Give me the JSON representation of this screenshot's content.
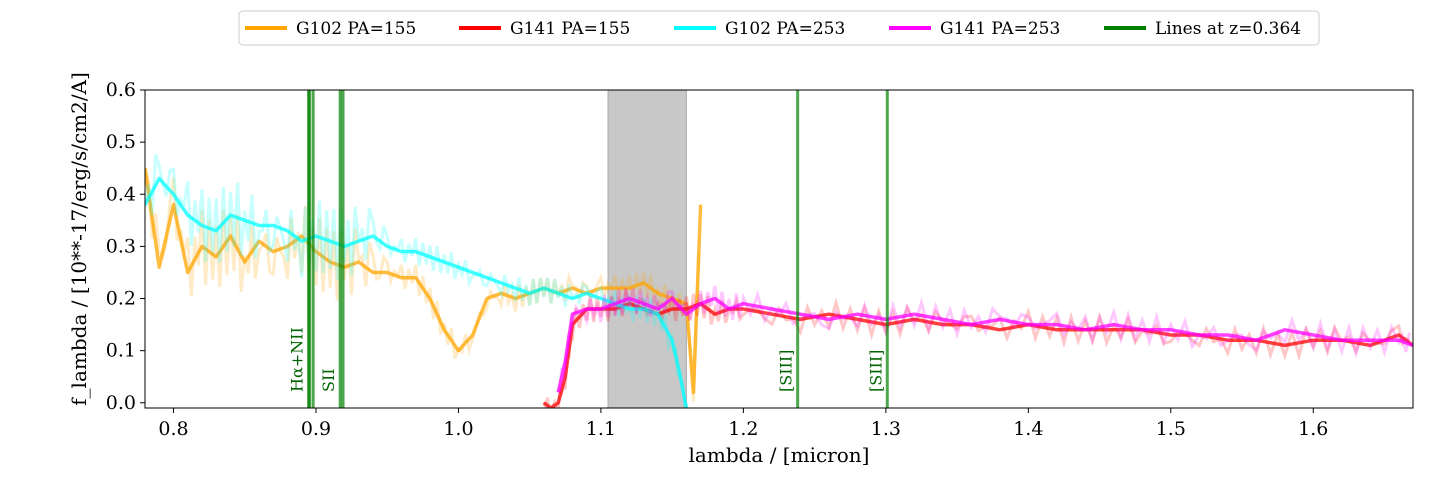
{
  "chart_data": {
    "type": "line",
    "title": "",
    "xlabel": "lambda / [micron]",
    "ylabel": "f_lambda / [10**-17/erg/s/cm2/A]",
    "xlim": [
      0.78,
      1.67
    ],
    "ylim": [
      -0.01,
      0.6
    ],
    "xticks": [
      0.8,
      0.9,
      1.0,
      1.1,
      1.2,
      1.3,
      1.4,
      1.5,
      1.6
    ],
    "xtick_labels": [
      "0.8",
      "0.9",
      "1.0",
      "1.1",
      "1.2",
      "1.3",
      "1.4",
      "1.5",
      "1.6"
    ],
    "yticks": [
      0.0,
      0.1,
      0.2,
      0.3,
      0.4,
      0.5,
      0.6
    ],
    "ytick_labels": [
      "0.0",
      "0.1",
      "0.2",
      "0.3",
      "0.4",
      "0.5",
      "0.6"
    ],
    "grid": false,
    "legend_position": "top-center, above plot",
    "shaded_region": {
      "x0": 1.105,
      "x1": 1.16,
      "color": "#c8c8c8"
    },
    "series": [
      {
        "name": "G102 PA=155",
        "color": "#ffa500",
        "x": [
          0.78,
          0.79,
          0.8,
          0.81,
          0.82,
          0.83,
          0.84,
          0.85,
          0.86,
          0.87,
          0.88,
          0.89,
          0.9,
          0.91,
          0.92,
          0.93,
          0.94,
          0.95,
          0.96,
          0.97,
          0.98,
          0.99,
          1.0,
          1.01,
          1.02,
          1.03,
          1.04,
          1.05,
          1.06,
          1.07,
          1.08,
          1.09,
          1.1,
          1.11,
          1.12,
          1.13,
          1.14,
          1.15,
          1.16,
          1.165,
          1.17
        ],
        "y": [
          0.45,
          0.26,
          0.38,
          0.25,
          0.3,
          0.28,
          0.32,
          0.27,
          0.31,
          0.29,
          0.3,
          0.32,
          0.29,
          0.27,
          0.26,
          0.27,
          0.25,
          0.25,
          0.24,
          0.24,
          0.2,
          0.14,
          0.1,
          0.13,
          0.2,
          0.21,
          0.2,
          0.21,
          0.22,
          0.21,
          0.22,
          0.21,
          0.22,
          0.22,
          0.22,
          0.23,
          0.21,
          0.2,
          0.19,
          0.02,
          0.38
        ]
      },
      {
        "name": "G141 PA=155",
        "color": "#ff0000",
        "x": [
          1.06,
          1.065,
          1.07,
          1.075,
          1.08,
          1.09,
          1.1,
          1.11,
          1.12,
          1.13,
          1.14,
          1.15,
          1.16,
          1.17,
          1.18,
          1.19,
          1.2,
          1.22,
          1.24,
          1.26,
          1.28,
          1.3,
          1.32,
          1.34,
          1.36,
          1.38,
          1.4,
          1.42,
          1.44,
          1.46,
          1.48,
          1.5,
          1.52,
          1.54,
          1.56,
          1.58,
          1.6,
          1.62,
          1.64,
          1.66,
          1.67
        ],
        "y": [
          0.0,
          -0.01,
          0.0,
          0.05,
          0.15,
          0.18,
          0.18,
          0.18,
          0.19,
          0.18,
          0.17,
          0.18,
          0.18,
          0.19,
          0.17,
          0.18,
          0.18,
          0.17,
          0.16,
          0.17,
          0.16,
          0.15,
          0.16,
          0.15,
          0.15,
          0.14,
          0.15,
          0.14,
          0.14,
          0.14,
          0.14,
          0.13,
          0.13,
          0.12,
          0.12,
          0.11,
          0.12,
          0.12,
          0.11,
          0.13,
          0.11
        ]
      },
      {
        "name": "G102 PA=253",
        "color": "#00ffff",
        "x": [
          0.78,
          0.79,
          0.8,
          0.81,
          0.82,
          0.83,
          0.84,
          0.85,
          0.86,
          0.87,
          0.88,
          0.89,
          0.9,
          0.91,
          0.92,
          0.93,
          0.94,
          0.95,
          0.96,
          0.97,
          0.98,
          0.99,
          1.0,
          1.01,
          1.02,
          1.03,
          1.04,
          1.05,
          1.06,
          1.07,
          1.08,
          1.09,
          1.1,
          1.11,
          1.12,
          1.13,
          1.14,
          1.15,
          1.155,
          1.16
        ],
        "y": [
          0.38,
          0.43,
          0.4,
          0.36,
          0.34,
          0.33,
          0.36,
          0.35,
          0.34,
          0.34,
          0.33,
          0.31,
          0.32,
          0.31,
          0.3,
          0.31,
          0.32,
          0.3,
          0.29,
          0.29,
          0.28,
          0.27,
          0.26,
          0.25,
          0.24,
          0.23,
          0.22,
          0.21,
          0.22,
          0.21,
          0.2,
          0.21,
          0.2,
          0.19,
          0.18,
          0.18,
          0.17,
          0.12,
          0.06,
          -0.01
        ]
      },
      {
        "name": "G141 PA=253",
        "color": "#ff00ff",
        "x": [
          1.07,
          1.075,
          1.08,
          1.09,
          1.1,
          1.11,
          1.12,
          1.13,
          1.14,
          1.15,
          1.16,
          1.17,
          1.18,
          1.19,
          1.2,
          1.22,
          1.24,
          1.26,
          1.28,
          1.3,
          1.32,
          1.34,
          1.36,
          1.38,
          1.4,
          1.42,
          1.44,
          1.46,
          1.48,
          1.5,
          1.52,
          1.54,
          1.56,
          1.58,
          1.6,
          1.62,
          1.64,
          1.66,
          1.67
        ],
        "y": [
          0.02,
          0.08,
          0.17,
          0.18,
          0.18,
          0.19,
          0.2,
          0.19,
          0.18,
          0.2,
          0.17,
          0.19,
          0.2,
          0.18,
          0.19,
          0.18,
          0.17,
          0.16,
          0.17,
          0.16,
          0.17,
          0.16,
          0.15,
          0.16,
          0.15,
          0.15,
          0.14,
          0.15,
          0.14,
          0.14,
          0.13,
          0.13,
          0.12,
          0.14,
          0.13,
          0.12,
          0.12,
          0.12,
          0.11
        ]
      }
    ],
    "vertical_lines": {
      "legend_name": "Lines at z=0.364",
      "color": "#008000",
      "lines": [
        {
          "x": 0.8955,
          "label": ""
        },
        {
          "x": 0.8948,
          "label": "Hα+NII"
        },
        {
          "x": 0.898,
          "label": ""
        },
        {
          "x": 0.917,
          "label": "SII"
        },
        {
          "x": 0.919,
          "label": ""
        },
        {
          "x": 1.2381,
          "label": "[SIII]"
        },
        {
          "x": 1.301,
          "label": "[SIII]"
        }
      ]
    }
  }
}
